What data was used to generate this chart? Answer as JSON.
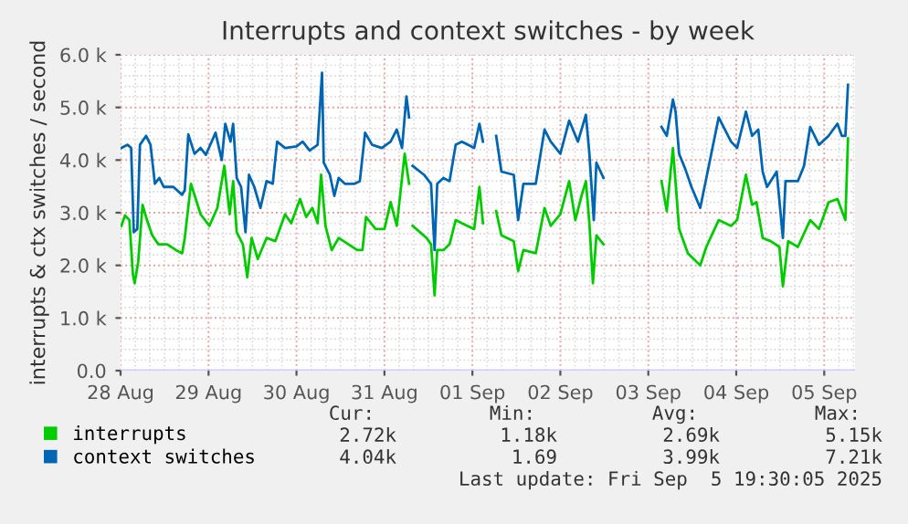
{
  "chart_data": {
    "type": "line",
    "title": "Interrupts and context switches - by week",
    "ylabel": "interrupts & ctx switches / second",
    "xlim": [
      "2025-08-28T00:00",
      "2025-09-05T08:24"
    ],
    "ylim": [
      0,
      6
    ],
    "xticks": [
      {
        "value": "2025-08-28",
        "label": "28 Aug"
      },
      {
        "value": "2025-08-29",
        "label": "29 Aug"
      },
      {
        "value": "2025-08-30",
        "label": "30 Aug"
      },
      {
        "value": "2025-08-31",
        "label": "31 Aug"
      },
      {
        "value": "2025-09-01",
        "label": "01 Sep"
      },
      {
        "value": "2025-09-02",
        "label": "02 Sep"
      },
      {
        "value": "2025-09-03",
        "label": "03 Sep"
      },
      {
        "value": "2025-09-04",
        "label": "04 Sep"
      },
      {
        "value": "2025-09-05",
        "label": "05 Sep"
      }
    ],
    "yticks": [
      {
        "value": 0,
        "label": "0.0"
      },
      {
        "value": 1,
        "label": "1.0 k"
      },
      {
        "value": 2,
        "label": "2.0 k"
      },
      {
        "value": 3,
        "label": "3.0 k"
      },
      {
        "value": 4,
        "label": "4.0 k"
      },
      {
        "value": 5,
        "label": "5.0 k"
      },
      {
        "value": 6,
        "label": "6.0 k"
      }
    ],
    "grid": true,
    "legend": "bottom left",
    "marker": "none",
    "line_style": "solid",
    "series": [
      {
        "name": "interrupts",
        "color": "#00cc00",
        "x": [
          "2025-08-28T00:14",
          "2025-08-28T01:12",
          "2025-08-28T02:24",
          "2025-08-28T03:22",
          "2025-08-28T03:50",
          "2025-08-28T04:48",
          "2025-08-28T06:00",
          "2025-08-28T07:12",
          "2025-08-28T08:38",
          "2025-08-28T10:19",
          "2025-08-28T12:43",
          "2025-08-28T15:07",
          "2025-08-28T16:48",
          "2025-08-28T17:31",
          "2025-08-28T19:12",
          "2025-08-28T21:50",
          "2025-08-29T00:14",
          "2025-08-29T02:24",
          "2025-08-29T04:19",
          "2025-08-29T05:46",
          "2025-08-29T06:43",
          "2025-08-29T07:41",
          "2025-08-29T09:22",
          "2025-08-29T10:34",
          "2025-08-29T11:46",
          "2025-08-29T13:26",
          "2025-08-29T15:50",
          "2025-08-29T18:14",
          "2025-08-29T20:53",
          "2025-08-29T22:34",
          "2025-08-30T00:58",
          "2025-08-30T02:38",
          "2025-08-30T04:19",
          "2025-08-30T05:46",
          "2025-08-30T06:43",
          "2025-08-30T07:55",
          "2025-08-30T09:36",
          "2025-08-30T11:31",
          "2025-08-30T14:10",
          "2025-08-30T16:34",
          "2025-08-30T18:00",
          "2025-08-30T18:58",
          "2025-08-30T21:36",
          "2025-08-31T00:00",
          "2025-08-31T01:41",
          "2025-08-31T03:22",
          "2025-08-31T05:31",
          "2025-08-31T06:43",
          "2025-08-31T07:12",
          "2025-08-31T07:41",
          "2025-08-31T11:31",
          "2025-08-31T12:43",
          "2025-08-31T13:41",
          "2025-08-31T14:24",
          "2025-08-31T16:05",
          "2025-08-31T17:46",
          "2025-08-31T19:26",
          "2025-08-31T21:07",
          "2025-09-01T00:29",
          "2025-09-01T01:55",
          "2025-09-01T02:53",
          "2025-09-01T04:48",
          "2025-09-01T06:29",
          "2025-09-01T07:55",
          "2025-09-01T11:17",
          "2025-09-01T12:29",
          "2025-09-01T13:55",
          "2025-09-01T17:17",
          "2025-09-01T19:41",
          "2025-09-01T21:22",
          "2025-09-02T00:00",
          "2025-09-02T02:24",
          "2025-09-02T04:05",
          "2025-09-02T05:46",
          "2025-09-02T06:58",
          "2025-09-02T07:55",
          "2025-09-02T08:53",
          "2025-09-02T09:50",
          "2025-09-02T11:46",
          "2025-09-02T19:12",
          "2025-09-03T03:36",
          "2025-09-03T05:02",
          "2025-09-03T06:43",
          "2025-09-03T08:24",
          "2025-09-03T10:48",
          "2025-09-03T14:10",
          "2025-09-03T15:50",
          "2025-09-03T19:12",
          "2025-09-03T22:34",
          "2025-09-04T00:14",
          "2025-09-04T02:38",
          "2025-09-04T04:19",
          "2025-09-04T05:31",
          "2025-09-04T07:12",
          "2025-09-04T09:22",
          "2025-09-04T11:46",
          "2025-09-04T12:43",
          "2025-09-04T14:10",
          "2025-09-04T16:48",
          "2025-09-04T20:10",
          "2025-09-04T22:34",
          "2025-09-05T01:12",
          "2025-09-05T03:36",
          "2025-09-05T05:46",
          "2025-09-05T06:29"
        ],
        "values": [
          2.75,
          2.95,
          2.86,
          1.83,
          1.66,
          2.06,
          3.15,
          2.86,
          2.57,
          2.4,
          2.4,
          2.29,
          2.23,
          2.52,
          3.55,
          2.97,
          2.75,
          3.09,
          3.89,
          2.97,
          3.6,
          2.63,
          2.4,
          1.77,
          2.52,
          2.12,
          2.52,
          2.46,
          2.97,
          2.8,
          3.26,
          2.92,
          3.09,
          2.8,
          3.72,
          2.75,
          2.29,
          2.52,
          2.4,
          2.29,
          2.29,
          2.92,
          2.69,
          2.69,
          3.2,
          2.75,
          4.12,
          3.55,
          null,
          2.75,
          2.52,
          2.4,
          1.43,
          2.29,
          2.29,
          2.4,
          2.86,
          2.8,
          2.69,
          3.49,
          2.8,
          null,
          3.03,
          2.57,
          2.46,
          1.89,
          2.29,
          2.23,
          3.09,
          2.75,
          2.97,
          3.6,
          2.86,
          3.32,
          3.6,
          2.8,
          1.66,
          2.57,
          2.4,
          null,
          3.6,
          3.03,
          4.23,
          2.69,
          2.23,
          2.0,
          2.35,
          2.86,
          2.75,
          2.86,
          3.72,
          3.15,
          3.2,
          2.52,
          2.46,
          2.35,
          1.6,
          2.46,
          2.35,
          2.86,
          2.69,
          3.2,
          3.26,
          2.86,
          4.41
        ]
      },
      {
        "name": "context switches",
        "color": "#0066b3",
        "x": [
          "2025-08-28T00:14",
          "2025-08-28T01:55",
          "2025-08-28T02:53",
          "2025-08-28T03:36",
          "2025-08-28T04:34",
          "2025-08-28T05:17",
          "2025-08-28T06:58",
          "2025-08-28T08:10",
          "2025-08-28T09:22",
          "2025-08-28T10:34",
          "2025-08-28T11:46",
          "2025-08-28T14:24",
          "2025-08-28T16:48",
          "2025-08-28T17:31",
          "2025-08-28T18:29",
          "2025-08-28T20:10",
          "2025-08-28T21:50",
          "2025-08-28T23:17",
          "2025-08-29T01:55",
          "2025-08-29T03:36",
          "2025-08-29T04:34",
          "2025-08-29T06:00",
          "2025-08-29T06:43",
          "2025-08-29T07:41",
          "2025-08-29T08:53",
          "2025-08-29T10:05",
          "2025-08-29T11:02",
          "2025-08-29T12:29",
          "2025-08-29T14:10",
          "2025-08-29T15:50",
          "2025-08-29T17:31",
          "2025-08-29T18:43",
          "2025-08-29T20:53",
          "2025-08-30T00:00",
          "2025-08-30T01:41",
          "2025-08-30T03:36",
          "2025-08-30T05:46",
          "2025-08-30T06:58",
          "2025-08-30T07:26",
          "2025-08-30T09:07",
          "2025-08-30T10:19",
          "2025-08-30T11:31",
          "2025-08-30T13:12",
          "2025-08-30T15:50",
          "2025-08-30T17:17",
          "2025-08-30T18:43",
          "2025-08-30T20:38",
          "2025-08-30T23:17",
          "2025-08-31T01:41",
          "2025-08-31T03:22",
          "2025-08-31T04:48",
          "2025-08-31T06:00",
          "2025-08-31T06:43",
          "2025-08-31T07:12",
          "2025-08-31T07:41",
          "2025-08-31T10:48",
          "2025-08-31T12:43",
          "2025-08-31T13:41",
          "2025-08-31T14:24",
          "2025-08-31T16:05",
          "2025-08-31T17:46",
          "2025-08-31T19:26",
          "2025-08-31T21:07",
          "2025-09-01T00:29",
          "2025-09-01T01:55",
          "2025-09-01T02:53",
          "2025-09-01T04:48",
          "2025-09-01T06:29",
          "2025-09-01T07:55",
          "2025-09-01T11:17",
          "2025-09-01T12:29",
          "2025-09-01T13:55",
          "2025-09-01T17:17",
          "2025-09-01T19:41",
          "2025-09-01T21:22",
          "2025-09-02T00:00",
          "2025-09-02T02:24",
          "2025-09-02T04:48",
          "2025-09-02T06:58",
          "2025-09-02T07:55",
          "2025-09-02T09:07",
          "2025-09-02T09:50",
          "2025-09-02T11:46",
          "2025-09-02T19:12",
          "2025-09-03T03:36",
          "2025-09-03T05:02",
          "2025-09-03T06:43",
          "2025-09-03T07:26",
          "2025-09-03T08:24",
          "2025-09-03T10:05",
          "2025-09-03T11:46",
          "2025-09-03T14:10",
          "2025-09-03T15:50",
          "2025-09-03T19:12",
          "2025-09-03T22:34",
          "2025-09-04T00:14",
          "2025-09-04T02:38",
          "2025-09-04T04:19",
          "2025-09-04T06:00",
          "2025-09-04T07:12",
          "2025-09-04T08:24",
          "2025-09-04T11:02",
          "2025-09-04T12:43",
          "2025-09-04T13:26",
          "2025-09-04T16:48",
          "2025-09-04T18:29",
          "2025-09-04T20:10",
          "2025-09-04T22:34",
          "2025-09-05T01:12",
          "2025-09-05T03:36",
          "2025-09-05T04:48",
          "2025-09-05T05:46",
          "2025-09-05T06:29"
        ],
        "values": [
          4.23,
          4.29,
          4.23,
          2.63,
          2.69,
          4.29,
          4.46,
          4.29,
          3.55,
          3.66,
          3.49,
          3.49,
          3.34,
          3.43,
          4.49,
          4.12,
          4.23,
          4.1,
          4.52,
          4.0,
          4.69,
          4.35,
          4.69,
          3.66,
          3.49,
          2.63,
          3.72,
          3.49,
          3.09,
          3.6,
          3.55,
          4.35,
          4.23,
          4.26,
          4.35,
          4.18,
          4.29,
          5.66,
          3.95,
          3.72,
          3.32,
          3.66,
          3.55,
          3.55,
          3.6,
          4.52,
          4.29,
          4.23,
          4.35,
          4.58,
          4.23,
          5.21,
          4.81,
          null,
          3.89,
          3.72,
          3.55,
          2.29,
          3.55,
          3.66,
          3.6,
          4.29,
          4.35,
          4.23,
          4.69,
          4.35,
          null,
          4.46,
          3.78,
          3.72,
          2.86,
          3.55,
          3.55,
          4.58,
          4.35,
          4.12,
          4.75,
          4.35,
          4.86,
          4.12,
          2.86,
          3.95,
          3.66,
          null,
          4.63,
          4.46,
          5.15,
          4.92,
          4.12,
          3.83,
          3.49,
          3.09,
          3.66,
          4.81,
          4.35,
          4.23,
          4.92,
          4.46,
          4.58,
          3.78,
          3.49,
          3.78,
          2.52,
          3.6,
          3.6,
          3.89,
          4.63,
          4.29,
          4.46,
          4.69,
          4.46,
          4.46,
          5.43
        ]
      }
    ],
    "annotations": [
      "Cur:",
      "Min:",
      "Avg:",
      "Max:",
      "2.72k",
      "1.18k",
      "2.69k",
      "5.15k",
      "4.04k",
      "1.69",
      "3.99k",
      "7.21k",
      "Last update: Fri Sep  5 19:30:05 2025"
    ]
  }
}
